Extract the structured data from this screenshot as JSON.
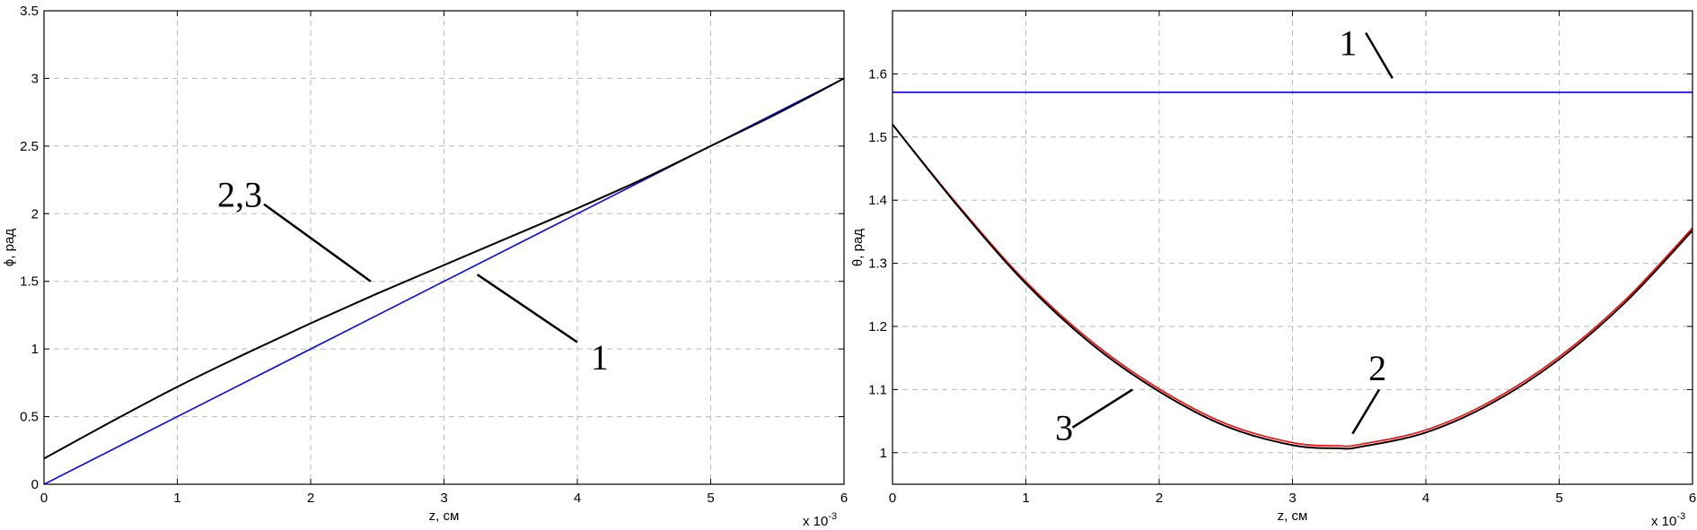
{
  "chart_data": [
    {
      "type": "line",
      "title": "",
      "xlabel": "z, см",
      "ylabel": "ϕ, рад",
      "x_exponent_base": "x 10",
      "x_exponent_power": "-3",
      "xlim": [
        0,
        6
      ],
      "ylim": [
        0,
        3.5
      ],
      "grid": true,
      "xticks": [
        0,
        1,
        2,
        3,
        4,
        5,
        6
      ],
      "xtick_labels": [
        "0",
        "1",
        "2",
        "3",
        "4",
        "5",
        "6"
      ],
      "yticks": [
        0,
        0.5,
        1,
        1.5,
        2,
        2.5,
        3,
        3.5
      ],
      "ytick_labels": [
        "0",
        "0.5",
        "1",
        "1.5",
        "2",
        "2.5",
        "3",
        "3.5"
      ],
      "series": [
        {
          "label_id": "1",
          "color": "#0000ff",
          "x": [
            0,
            1,
            2,
            3,
            4,
            5,
            6
          ],
          "y": [
            0,
            0.5,
            1.0,
            1.5,
            2.0,
            2.5,
            3.0
          ]
        },
        {
          "label_id": "2",
          "color": "#ff0000",
          "x": [
            0,
            0.5,
            1,
            1.5,
            2,
            2.5,
            3,
            3.5,
            4,
            4.5,
            5,
            5.5,
            6
          ],
          "y": [
            0.19,
            0.46,
            0.72,
            0.96,
            1.19,
            1.41,
            1.62,
            1.83,
            2.04,
            2.26,
            2.5,
            2.74,
            3.0
          ]
        },
        {
          "label_id": "3",
          "color": "#000000",
          "x": [
            0,
            0.5,
            1,
            1.5,
            2,
            2.5,
            3,
            3.5,
            4,
            4.5,
            5,
            5.5,
            6
          ],
          "y": [
            0.19,
            0.46,
            0.72,
            0.96,
            1.19,
            1.41,
            1.62,
            1.83,
            2.04,
            2.26,
            2.5,
            2.74,
            3.0
          ]
        }
      ],
      "annotations": [
        {
          "text": "2,3",
          "x": 1.3,
          "y": 2.05,
          "line_from": [
            1.65,
            2.07
          ],
          "line_to": [
            2.45,
            1.5
          ]
        },
        {
          "text": "1",
          "x": 4.1,
          "y": 0.85,
          "line_from": [
            4.0,
            1.05
          ],
          "line_to": [
            3.25,
            1.55
          ]
        }
      ]
    },
    {
      "type": "line",
      "title": "",
      "xlabel": "z, см",
      "ylabel": "θ, рад",
      "x_exponent_base": "x 10",
      "x_exponent_power": "-3",
      "xlim": [
        0,
        6
      ],
      "ylim": [
        0.95,
        1.7
      ],
      "grid": true,
      "xticks": [
        0,
        1,
        2,
        3,
        4,
        5,
        6
      ],
      "xtick_labels": [
        "0",
        "1",
        "2",
        "3",
        "4",
        "5",
        "6"
      ],
      "yticks": [
        1,
        1.1,
        1.2,
        1.3,
        1.4,
        1.5,
        1.6
      ],
      "ytick_labels": [
        "1",
        "1.1",
        "1.2",
        "1.3",
        "1.4",
        "1.5",
        "1.6"
      ],
      "series": [
        {
          "label_id": "1",
          "color": "#0000ff",
          "x": [
            0,
            6
          ],
          "y": [
            1.5708,
            1.5708
          ]
        },
        {
          "label_id": "2",
          "color": "#ff0000",
          "x": [
            0,
            0.5,
            1,
            1.5,
            2,
            2.5,
            3,
            3.34,
            3.5,
            4,
            4.5,
            5,
            5.5,
            6
          ],
          "y": [
            1.52,
            1.39,
            1.271,
            1.175,
            1.101,
            1.046,
            1.016,
            1.011,
            1.013,
            1.036,
            1.083,
            1.152,
            1.243,
            1.356
          ]
        },
        {
          "label_id": "3",
          "color": "#000000",
          "x": [
            0,
            0.5,
            1,
            1.5,
            2,
            2.5,
            3,
            3.34,
            3.5,
            4,
            4.5,
            5,
            5.5,
            6
          ],
          "y": [
            1.52,
            1.388,
            1.268,
            1.171,
            1.097,
            1.042,
            1.012,
            1.007,
            1.009,
            1.032,
            1.079,
            1.148,
            1.239,
            1.352
          ]
        }
      ],
      "annotations": [
        {
          "text": "1",
          "x": 3.35,
          "y": 1.63,
          "line_from": [
            3.55,
            1.665
          ],
          "line_to": [
            3.75,
            1.593
          ]
        },
        {
          "text": "2",
          "x": 3.57,
          "y": 1.115,
          "line_from": [
            3.65,
            1.1
          ],
          "line_to": [
            3.45,
            1.03
          ]
        },
        {
          "text": "3",
          "x": 1.22,
          "y": 1.02,
          "line_from": [
            1.35,
            1.04
          ],
          "line_to": [
            1.8,
            1.1
          ]
        }
      ]
    }
  ]
}
